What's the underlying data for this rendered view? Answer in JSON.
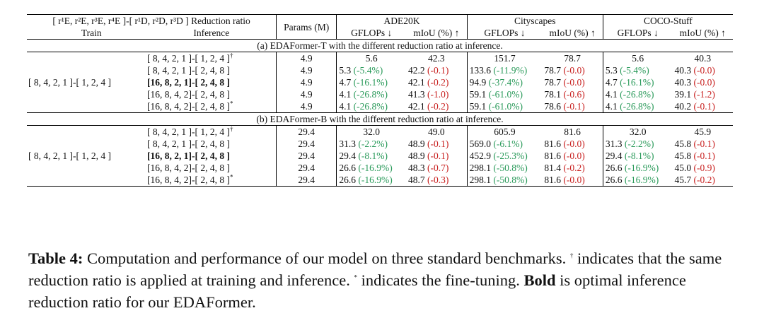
{
  "header": {
    "cfg_top": "[ r¹E, r²E, r³E, r⁴E ]-[ r¹D, r²D, r³D ] Reduction ratio",
    "cfg_train": "Train",
    "cfg_infer": "Inference",
    "params": "Params (M)",
    "datasets": [
      "ADE20K",
      "Cityscapes",
      "COCO-Stuff"
    ],
    "gflops": "GFLOPs ↓",
    "miou": "mIoU (%) ↑"
  },
  "sections": [
    {
      "title": "(a) EDAFormer-T with the different reduction ratio at inference.",
      "train": "[ 8, 4, 2, 1 ]-[ 1, 2, 4 ]",
      "rows": [
        {
          "infer": "[ 8, 4, 2, 1 ]-[ 1, 2, 4 ]",
          "mark": "†",
          "bold": false,
          "params": "4.9",
          "vals": [
            [
              "5.6",
              ""
            ],
            [
              "42.3",
              ""
            ],
            [
              "151.7",
              ""
            ],
            [
              "78.7",
              ""
            ],
            [
              "5.6",
              ""
            ],
            [
              "40.3",
              ""
            ]
          ]
        },
        {
          "infer": "[ 8, 4, 2, 1 ]-[ 2, 4, 8 ]",
          "mark": "",
          "bold": false,
          "params": "4.9",
          "vals": [
            [
              "5.3",
              "(-5.4%)"
            ],
            [
              "42.2",
              "(-0.1)"
            ],
            [
              "133.6",
              "(-11.9%)"
            ],
            [
              "78.7",
              "(-0.0)"
            ],
            [
              "5.3",
              "(-5.4%)"
            ],
            [
              "40.3",
              "(-0.0)"
            ]
          ]
        },
        {
          "infer": "[16, 8, 2, 1]-[ 2, 4, 8 ]",
          "mark": "",
          "bold": true,
          "params": "4.9",
          "vals": [
            [
              "4.7",
              "(-16.1%)"
            ],
            [
              "42.1",
              "(-0.2)"
            ],
            [
              "94.9",
              "(-37.4%)"
            ],
            [
              "78.7",
              "(-0.0)"
            ],
            [
              "4.7",
              "(-16.1%)"
            ],
            [
              "40.3",
              "(-0.0)"
            ]
          ]
        },
        {
          "infer": "[16, 8, 4, 2]-[ 2, 4, 8 ]",
          "mark": "",
          "bold": false,
          "params": "4.9",
          "vals": [
            [
              "4.1",
              "(-26.8%)"
            ],
            [
              "41.3",
              "(-1.0)"
            ],
            [
              "59.1",
              "(-61.0%)"
            ],
            [
              "78.1",
              "(-0.6)"
            ],
            [
              "4.1",
              "(-26.8%)"
            ],
            [
              "39.1",
              "(-1.2)"
            ]
          ]
        },
        {
          "infer": "[16, 8, 4, 2]-[ 2, 4, 8 ]",
          "mark": "*",
          "bold": false,
          "params": "4.9",
          "vals": [
            [
              "4.1",
              "(-26.8%)"
            ],
            [
              "42.1",
              "(-0.2)"
            ],
            [
              "59.1",
              "(-61.0%)"
            ],
            [
              "78.6",
              "(-0.1)"
            ],
            [
              "4.1",
              "(-26.8%)"
            ],
            [
              "40.2",
              "(-0.1)"
            ]
          ]
        }
      ]
    },
    {
      "title": "(b) EDAFormer-B with the different reduction ratio at inference.",
      "train": "[ 8, 4, 2, 1 ]-[ 1, 2, 4 ]",
      "rows": [
        {
          "infer": "[ 8, 4, 2, 1 ]-[ 1, 2, 4 ]",
          "mark": "†",
          "bold": false,
          "params": "29.4",
          "vals": [
            [
              "32.0",
              ""
            ],
            [
              "49.0",
              ""
            ],
            [
              "605.9",
              ""
            ],
            [
              "81.6",
              ""
            ],
            [
              "32.0",
              ""
            ],
            [
              "45.9",
              ""
            ]
          ]
        },
        {
          "infer": "[ 8, 4, 2, 1 ]-[ 2, 4, 8 ]",
          "mark": "",
          "bold": false,
          "params": "29.4",
          "vals": [
            [
              "31.3",
              "(-2.2%)"
            ],
            [
              "48.9",
              "(-0.1)"
            ],
            [
              "569.0",
              "(-6.1%)"
            ],
            [
              "81.6",
              "(-0.0)"
            ],
            [
              "31.3",
              "(-2.2%)"
            ],
            [
              "45.8",
              "(-0.1)"
            ]
          ]
        },
        {
          "infer": "[16, 8, 2, 1]-[ 2, 4, 8 ]",
          "mark": "",
          "bold": true,
          "params": "29.4",
          "vals": [
            [
              "29.4",
              "(-8.1%)"
            ],
            [
              "48.9",
              "(-0.1)"
            ],
            [
              "452.9",
              "(-25.3%)"
            ],
            [
              "81.6",
              "(-0.0)"
            ],
            [
              "29.4",
              "(-8.1%)"
            ],
            [
              "45.8",
              "(-0.1)"
            ]
          ]
        },
        {
          "infer": "[16, 8, 4, 2]-[ 2, 4, 8 ]",
          "mark": "",
          "bold": false,
          "params": "29.4",
          "vals": [
            [
              "26.6",
              "(-16.9%)"
            ],
            [
              "48.3",
              "(-0.7)"
            ],
            [
              "298.1",
              "(-50.8%)"
            ],
            [
              "81.4",
              "(-0.2)"
            ],
            [
              "26.6",
              "(-16.9%)"
            ],
            [
              "45.0",
              "(-0.9)"
            ]
          ]
        },
        {
          "infer": "[16, 8, 4, 2]-[ 2, 4, 8 ]",
          "mark": "*",
          "bold": false,
          "params": "29.4",
          "vals": [
            [
              "26.6",
              "(-16.9%)"
            ],
            [
              "48.7",
              "(-0.3)"
            ],
            [
              "298.1",
              "(-50.8%)"
            ],
            [
              "81.6",
              "(-0.0)"
            ],
            [
              "26.6",
              "(-16.9%)"
            ],
            [
              "45.7",
              "(-0.2)"
            ]
          ]
        }
      ]
    }
  ],
  "caption": {
    "label": "Table 4:",
    "text1": " Computation and performance of our model on three standard benchmarks. ",
    "dagger": "†",
    "text2": " indicates that the same reduction ratio is applied at training and inference. ",
    "star": "*",
    "text3": " indicates the fine-tuning. ",
    "bold_word": "Bold",
    "text4": " is optimal inference reduction ratio for our EDAFormer."
  },
  "colors": {
    "decrease_green": "#2a9a5a",
    "drop_red": "#c8201f"
  }
}
